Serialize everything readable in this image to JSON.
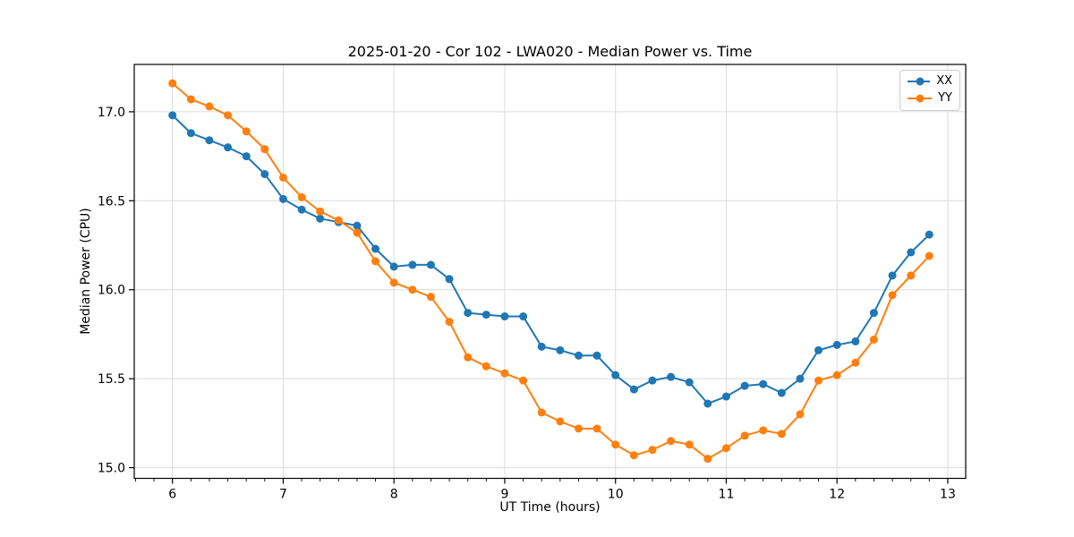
{
  "chart_data": {
    "type": "line",
    "title": "2025-01-20 - Cor 102 - LWA020 - Median Power vs. Time",
    "xlabel": "UT Time (hours)",
    "ylabel": "Median Power (CPU)",
    "xlim": [
      5.655,
      13.162
    ],
    "ylim": [
      14.94,
      17.266
    ],
    "x_ticks": [
      6,
      7,
      8,
      9,
      10,
      11,
      12,
      13
    ],
    "y_ticks": [
      15.0,
      15.5,
      16.0,
      16.5,
      17.0
    ],
    "x_minor_step_hours": 0.1667,
    "grid": true,
    "legend_position": "upper right",
    "grid_color": "#dcdcdc",
    "x": [
      6.0,
      6.167,
      6.333,
      6.5,
      6.667,
      6.833,
      7.0,
      7.167,
      7.333,
      7.5,
      7.667,
      7.833,
      8.0,
      8.167,
      8.333,
      8.5,
      8.667,
      8.833,
      9.0,
      9.167,
      9.333,
      9.5,
      9.667,
      9.833,
      10.0,
      10.167,
      10.333,
      10.5,
      10.667,
      10.833,
      11.0,
      11.167,
      11.333,
      11.5,
      11.667,
      11.833,
      12.0,
      12.167,
      12.333,
      12.5,
      12.667,
      12.833
    ],
    "series": [
      {
        "name": "XX",
        "color": "#1f77b4",
        "values": [
          16.98,
          16.88,
          16.84,
          16.8,
          16.75,
          16.65,
          16.51,
          16.45,
          16.4,
          16.38,
          16.36,
          16.23,
          16.13,
          16.14,
          16.14,
          16.06,
          15.87,
          15.86,
          15.85,
          15.85,
          15.68,
          15.66,
          15.63,
          15.63,
          15.52,
          15.44,
          15.49,
          15.51,
          15.48,
          15.36,
          15.4,
          15.46,
          15.47,
          15.42,
          15.5,
          15.66,
          15.69,
          15.71,
          15.87,
          16.08,
          16.21,
          16.31
        ]
      },
      {
        "name": "YY",
        "color": "#ff7f0e",
        "values": [
          17.16,
          17.07,
          17.03,
          16.98,
          16.89,
          16.79,
          16.63,
          16.52,
          16.44,
          16.39,
          16.32,
          16.16,
          16.04,
          16.0,
          15.96,
          15.82,
          15.62,
          15.57,
          15.53,
          15.49,
          15.31,
          15.26,
          15.22,
          15.22,
          15.13,
          15.07,
          15.1,
          15.15,
          15.13,
          15.05,
          15.11,
          15.18,
          15.21,
          15.19,
          15.3,
          15.49,
          15.52,
          15.59,
          15.72,
          15.97,
          16.08,
          16.19
        ]
      }
    ]
  }
}
